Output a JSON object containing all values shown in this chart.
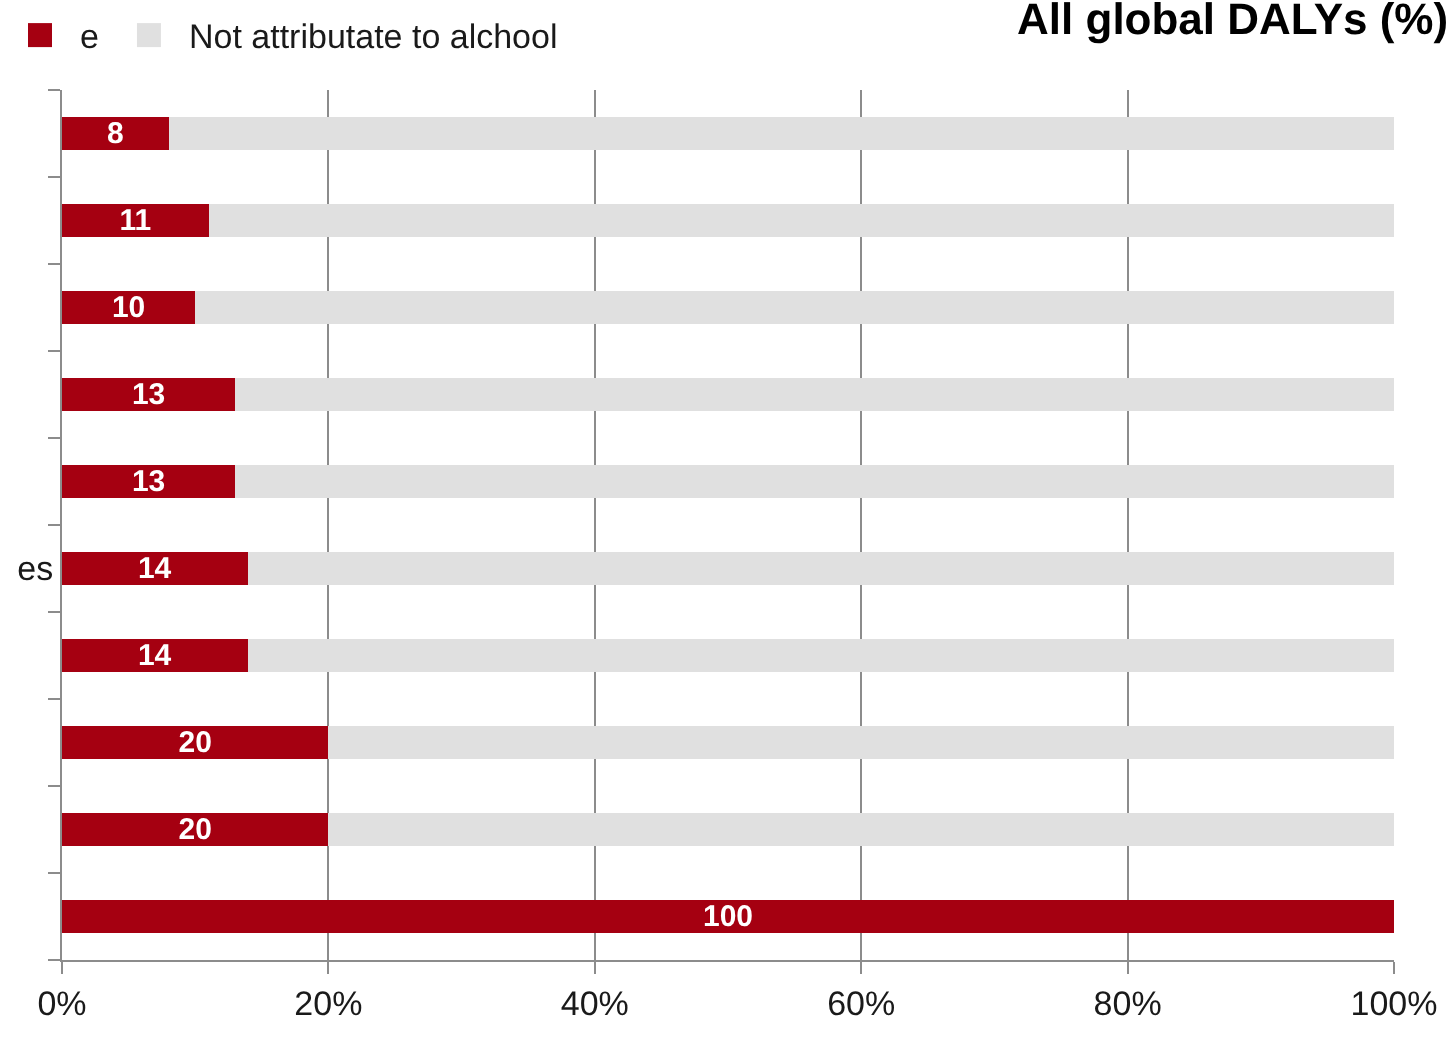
{
  "chart_data": {
    "type": "bar",
    "orientation": "horizontal",
    "stacked": true,
    "title": "All global DALYs (%)",
    "categories": [
      null,
      null,
      null,
      null,
      null,
      "es",
      null,
      null,
      null,
      null
    ],
    "series": [
      {
        "name": "e",
        "color": "#a50011",
        "values": [
          8,
          11,
          10,
          13,
          13,
          14,
          14,
          20,
          20,
          100
        ],
        "value_labels": [
          "8",
          "11",
          "10",
          "13",
          "13",
          "14",
          "14",
          "20",
          "20",
          "100"
        ]
      },
      {
        "name": "Not attributate to alchool",
        "color": "#e0e0e0",
        "values": [
          92,
          89,
          90,
          87,
          87,
          86,
          86,
          80,
          80,
          0
        ]
      }
    ],
    "xlim": [
      0,
      100
    ],
    "xticks": [
      {
        "value": 0,
        "label": "0%"
      },
      {
        "value": 20,
        "label": "20%"
      },
      {
        "value": 40,
        "label": "40%"
      },
      {
        "value": 60,
        "label": "60%"
      },
      {
        "value": 80,
        "label": "80%"
      },
      {
        "value": 100,
        "label": "100%"
      }
    ],
    "grid": "x",
    "legend": "top left"
  }
}
